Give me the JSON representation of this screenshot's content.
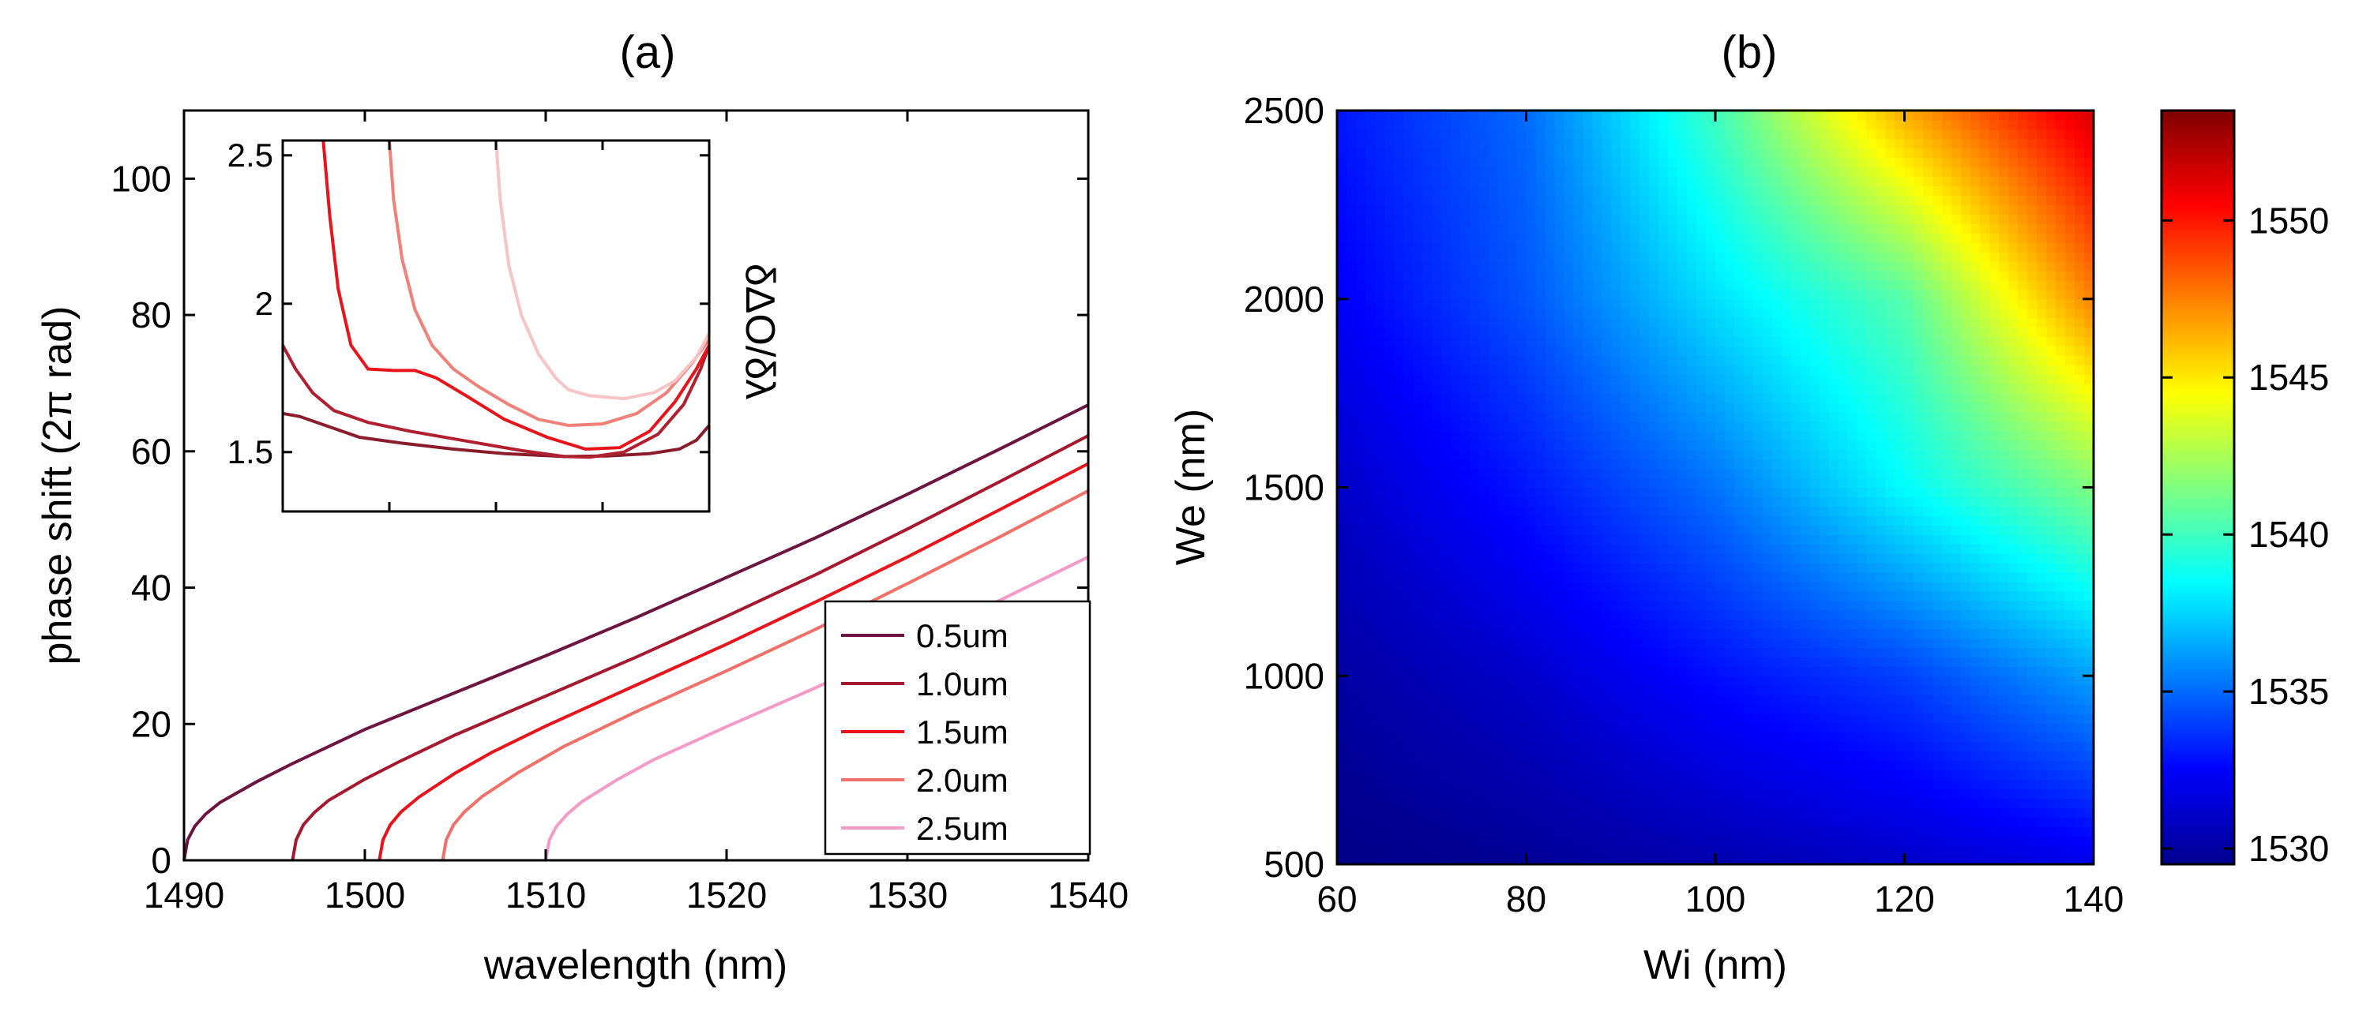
{
  "chart_data": [
    {
      "type": "line",
      "panel": "(a)",
      "title": "(a)",
      "xlabel": "wavelength (nm)",
      "ylabel": "phase shift (2π rad)",
      "xlim": [
        1490,
        1540
      ],
      "ylim": [
        0,
        110
      ],
      "xticks": [
        1490,
        1500,
        1510,
        1520,
        1530,
        1540
      ],
      "yticks": [
        0,
        20,
        40,
        60,
        80,
        100
      ],
      "legend_position": "bottom-right",
      "series": [
        {
          "name": "0.5um",
          "color": "#6e1440",
          "points": [
            [
              1490.0,
              0
            ],
            [
              1490.2,
              3
            ],
            [
              1490.6,
              5
            ],
            [
              1491.2,
              6.8
            ],
            [
              1492,
              8.5
            ],
            [
              1494,
              11.5
            ],
            [
              1496,
              14.2
            ],
            [
              1500,
              19.2
            ],
            [
              1505,
              24.6
            ],
            [
              1510,
              30
            ],
            [
              1515,
              35.6
            ],
            [
              1520,
              41.5
            ],
            [
              1525,
              47.4
            ],
            [
              1530,
              53.7
            ],
            [
              1535,
              60.2
            ],
            [
              1540,
              66.8
            ]
          ]
        },
        {
          "name": "1.0um",
          "color": "#a51830",
          "points": [
            [
              1496.0,
              0
            ],
            [
              1496.2,
              3
            ],
            [
              1496.6,
              5.2
            ],
            [
              1497.2,
              7
            ],
            [
              1498,
              8.8
            ],
            [
              1500,
              11.9
            ],
            [
              1502,
              14.6
            ],
            [
              1505,
              18.4
            ],
            [
              1510,
              24.1
            ],
            [
              1515,
              29.8
            ],
            [
              1520,
              35.8
            ],
            [
              1525,
              42
            ],
            [
              1530,
              48.6
            ],
            [
              1535,
              55.4
            ],
            [
              1540,
              62.3
            ]
          ]
        },
        {
          "name": "1.5um",
          "color": "#e8141c",
          "points": [
            [
              1500.8,
              0
            ],
            [
              1501,
              3
            ],
            [
              1501.4,
              5.2
            ],
            [
              1502,
              7.1
            ],
            [
              1503,
              9.3
            ],
            [
              1505,
              12.8
            ],
            [
              1507,
              15.8
            ],
            [
              1510,
              19.7
            ],
            [
              1515,
              25.7
            ],
            [
              1520,
              31.7
            ],
            [
              1525,
              38
            ],
            [
              1530,
              44.5
            ],
            [
              1535,
              51.3
            ],
            [
              1540,
              58.2
            ]
          ]
        },
        {
          "name": "2.0um",
          "color": "#f0706a",
          "points": [
            [
              1504.3,
              0
            ],
            [
              1504.5,
              3
            ],
            [
              1504.9,
              5.2
            ],
            [
              1505.5,
              7.1
            ],
            [
              1506.5,
              9.4
            ],
            [
              1508.5,
              12.9
            ],
            [
              1511,
              16.7
            ],
            [
              1515,
              21.8
            ],
            [
              1520,
              27.8
            ],
            [
              1525,
              34
            ],
            [
              1530,
              40.6
            ],
            [
              1535,
              47.3
            ],
            [
              1540,
              54.2
            ]
          ]
        },
        {
          "name": "2.5um",
          "color": "#f49ac8",
          "points": [
            [
              1510.0,
              0
            ],
            [
              1510.2,
              3
            ],
            [
              1510.6,
              5
            ],
            [
              1511.2,
              6.8
            ],
            [
              1512,
              8.6
            ],
            [
              1514,
              11.9
            ],
            [
              1516,
              14.8
            ],
            [
              1520,
              19.6
            ],
            [
              1525,
              25.4
            ],
            [
              1530,
              31.6
            ],
            [
              1535,
              38
            ],
            [
              1540,
              44.5
            ]
          ]
        }
      ],
      "inset": {
        "ylabel": "δΔO/δλ",
        "ylim": [
          1.3,
          2.55
        ],
        "yticks": [
          1.5,
          2,
          2.5
        ],
        "xlim": [
          0,
          1
        ],
        "series": [
          {
            "name": "0.5um",
            "color": "#8b1c2c",
            "points": [
              [
                0,
                1.63
              ],
              [
                0.04,
                1.62
              ],
              [
                0.1,
                1.59
              ],
              [
                0.18,
                1.55
              ],
              [
                0.28,
                1.53
              ],
              [
                0.4,
                1.51
              ],
              [
                0.52,
                1.495
              ],
              [
                0.66,
                1.485
              ],
              [
                0.76,
                1.487
              ],
              [
                0.86,
                1.495
              ],
              [
                0.93,
                1.51
              ],
              [
                0.97,
                1.54
              ],
              [
                1,
                1.59
              ]
            ]
          },
          {
            "name": "1.0um",
            "color": "#b02030",
            "points": [
              [
                0,
                1.86
              ],
              [
                0.03,
                1.78
              ],
              [
                0.07,
                1.7
              ],
              [
                0.12,
                1.64
              ],
              [
                0.2,
                1.6
              ],
              [
                0.3,
                1.57
              ],
              [
                0.42,
                1.54
              ],
              [
                0.56,
                1.505
              ],
              [
                0.66,
                1.485
              ],
              [
                0.72,
                1.483
              ],
              [
                0.8,
                1.5
              ],
              [
                0.88,
                1.56
              ],
              [
                0.94,
                1.66
              ],
              [
                0.98,
                1.78
              ],
              [
                1,
                1.86
              ]
            ]
          },
          {
            "name": "1.5um",
            "color": "#e8141c",
            "points": [
              [
                0.095,
                2.55
              ],
              [
                0.11,
                2.3
              ],
              [
                0.13,
                2.05
              ],
              [
                0.16,
                1.86
              ],
              [
                0.2,
                1.78
              ],
              [
                0.26,
                1.775
              ],
              [
                0.31,
                1.775
              ],
              [
                0.36,
                1.75
              ],
              [
                0.43,
                1.69
              ],
              [
                0.52,
                1.61
              ],
              [
                0.62,
                1.55
              ],
              [
                0.71,
                1.51
              ],
              [
                0.79,
                1.515
              ],
              [
                0.86,
                1.57
              ],
              [
                0.92,
                1.67
              ],
              [
                0.97,
                1.78
              ],
              [
                1,
                1.86
              ]
            ]
          },
          {
            "name": "2.0um",
            "color": "#f08078",
            "points": [
              [
                0.25,
                2.55
              ],
              [
                0.26,
                2.35
              ],
              [
                0.28,
                2.15
              ],
              [
                0.31,
                1.98
              ],
              [
                0.35,
                1.86
              ],
              [
                0.4,
                1.78
              ],
              [
                0.46,
                1.72
              ],
              [
                0.53,
                1.66
              ],
              [
                0.6,
                1.61
              ],
              [
                0.67,
                1.59
              ],
              [
                0.75,
                1.595
              ],
              [
                0.83,
                1.63
              ],
              [
                0.9,
                1.7
              ],
              [
                0.96,
                1.8
              ],
              [
                1,
                1.88
              ]
            ]
          },
          {
            "name": "2.5um",
            "color": "#f6c4c4",
            "points": [
              [
                0.5,
                2.55
              ],
              [
                0.51,
                2.35
              ],
              [
                0.53,
                2.13
              ],
              [
                0.56,
                1.96
              ],
              [
                0.6,
                1.83
              ],
              [
                0.64,
                1.75
              ],
              [
                0.67,
                1.71
              ],
              [
                0.72,
                1.69
              ],
              [
                0.8,
                1.68
              ],
              [
                0.87,
                1.7
              ],
              [
                0.92,
                1.74
              ],
              [
                0.97,
                1.82
              ],
              [
                1,
                1.9
              ]
            ]
          }
        ]
      }
    },
    {
      "type": "heatmap",
      "panel": "(b)",
      "title": "(b)",
      "xlabel": "Wi (nm)",
      "ylabel": "We (nm)",
      "x": [
        60,
        80,
        100,
        120,
        140
      ],
      "y": [
        500,
        1000,
        1500,
        2000,
        2500
      ],
      "xlim": [
        60,
        140
      ],
      "ylim": [
        500,
        2500
      ],
      "xticks": [
        60,
        80,
        100,
        120,
        140
      ],
      "yticks": [
        500,
        1000,
        1500,
        2000,
        2500
      ],
      "colorbar": {
        "range": [
          1529.5,
          1553.5
        ],
        "ticks": [
          1530,
          1535,
          1540,
          1545,
          1550
        ],
        "colormap": "jet"
      },
      "values": [
        [
          1529.7,
          1530.0,
          1530.6,
          1531.2,
          1532.0
        ],
        [
          1530.3,
          1531.3,
          1532.8,
          1534.0,
          1536.3
        ],
        [
          1531.2,
          1533.0,
          1535.2,
          1538.5,
          1541.5
        ],
        [
          1532.3,
          1534.5,
          1537.8,
          1540.5,
          1547.5
        ],
        [
          1533.0,
          1535.0,
          1540.0,
          1546.5,
          1551.5
        ]
      ]
    }
  ]
}
